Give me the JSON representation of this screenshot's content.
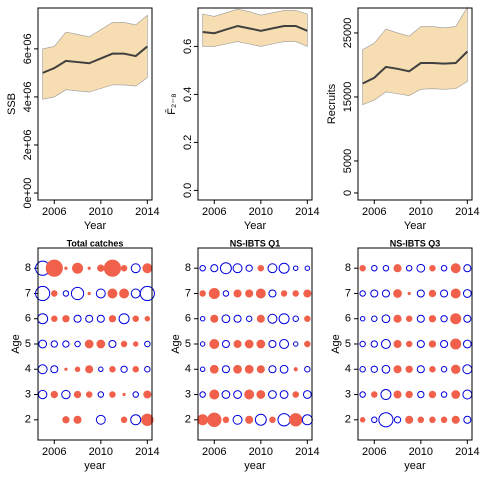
{
  "chart_data": [
    {
      "type": "band",
      "ylabel": "SSB",
      "xlabel": "Year",
      "x": [
        2005,
        2006,
        2007,
        2008,
        2009,
        2010,
        2011,
        2012,
        2013,
        2014
      ],
      "values": [
        5000000,
        5200000,
        5500000,
        5450000,
        5400000,
        5600000,
        5800000,
        5800000,
        5700000,
        6100000
      ],
      "upper": [
        6000000,
        6100000,
        6700000,
        6600000,
        6500000,
        6800000,
        7100000,
        7100000,
        7000000,
        7400000
      ],
      "lower": [
        3900000,
        4000000,
        4300000,
        4250000,
        4200000,
        4350000,
        4500000,
        4500000,
        4450000,
        4800000
      ],
      "color": "#404040",
      "band_color": "#f7ddb2",
      "xlim": [
        2004.6,
        2014.4
      ],
      "xticks": [
        2006,
        2010,
        2014
      ],
      "ylim": [
        -290000,
        7700000
      ],
      "yticks": [
        {
          "value": 0,
          "label": "0e+00"
        },
        {
          "value": 2000000,
          "label": "2e+06"
        },
        {
          "value": 4000000,
          "label": "4e+06"
        },
        {
          "value": 6000000,
          "label": "6e+06"
        }
      ]
    },
    {
      "type": "band",
      "ylabel": "F̄₂₋₈",
      "xlabel": "Year",
      "x": [
        2005,
        2006,
        2007,
        2008,
        2009,
        2010,
        2011,
        2012,
        2013,
        2014
      ],
      "values": [
        0.66,
        0.655,
        0.67,
        0.685,
        0.675,
        0.665,
        0.675,
        0.685,
        0.685,
        0.665
      ],
      "upper": [
        0.735,
        0.725,
        0.74,
        0.755,
        0.745,
        0.73,
        0.74,
        0.75,
        0.75,
        0.735
      ],
      "lower": [
        0.6,
        0.6,
        0.61,
        0.62,
        0.61,
        0.6,
        0.61,
        0.62,
        0.62,
        0.6
      ],
      "color": "#404040",
      "band_color": "#f7ddb2",
      "xlim": [
        2004.6,
        2014.4
      ],
      "xticks": [
        2006,
        2010,
        2014
      ],
      "ylim": [
        -0.04,
        0.76
      ],
      "yticks": [
        {
          "value": 0,
          "label": "0.0"
        },
        0.2,
        0.4,
        0.6
      ]
    },
    {
      "type": "band",
      "ylabel": "Recruits",
      "xlabel": "Year",
      "x": [
        2005,
        2006,
        2007,
        2008,
        2009,
        2010,
        2011,
        2012,
        2013,
        2014
      ],
      "values": [
        17100,
        18000,
        19700,
        19400,
        19000,
        20300,
        20300,
        20200,
        20300,
        22100
      ],
      "upper": [
        22400,
        23400,
        25600,
        25000,
        24500,
        26000,
        26000,
        25800,
        26000,
        29000
      ],
      "lower": [
        13800,
        14500,
        15800,
        15500,
        15200,
        16200,
        16300,
        16200,
        16300,
        17400
      ],
      "color": "#404040",
      "band_color": "#f7ddb2",
      "xlim": [
        2004.6,
        2014.4
      ],
      "xticks": [
        2006,
        2010,
        2014
      ],
      "ylim": [
        -1100,
        28900
      ],
      "yticks": [
        0,
        5000,
        15000,
        25000
      ]
    },
    {
      "type": "bubble",
      "title": "Total catches",
      "ylabel": "Age",
      "xlabel": "year",
      "x": [
        2005,
        2006,
        2007,
        2008,
        2009,
        2010,
        2011,
        2012,
        2013,
        2014
      ],
      "y": [
        2,
        3,
        4,
        5,
        6,
        7,
        8
      ],
      "values": [
        [
          0,
          0,
          0.4,
          0.5,
          0,
          -0.8,
          0,
          0.3,
          -1.0,
          1.3
        ],
        [
          -0.7,
          0.4,
          -0.7,
          0.4,
          0.3,
          -0.3,
          0.3,
          0.05,
          -0.3,
          0.5
        ],
        [
          -0.8,
          -0.5,
          0.05,
          0.2,
          0.5,
          -0.2,
          0.3,
          -0.4,
          0.3,
          -0.3
        ],
        [
          -0.6,
          -0.4,
          -0.4,
          -0.3,
          0.6,
          0.6,
          -0.5,
          0.3,
          0.2,
          -0.3
        ],
        [
          -1.0,
          0.3,
          0.4,
          -0.5,
          -0.5,
          -0.5,
          0.4,
          -1.0,
          0.3,
          0.2
        ],
        [
          -2.0,
          0.3,
          -0.3,
          -1.5,
          0.05,
          -0.8,
          0.8,
          0.8,
          -0.8,
          -2.0
        ],
        [
          -2.0,
          2.6,
          0.05,
          1.0,
          0.05,
          0.4,
          2.6,
          0.3,
          -0.8,
          0.8
        ]
      ],
      "pos_color": "#f0604a",
      "neg_color": "#0000dd",
      "xlim": [
        2004.6,
        2014.4
      ],
      "xticks": [
        2006,
        2010,
        2014
      ],
      "ylim": [
        1.2,
        8.8
      ]
    },
    {
      "type": "bubble",
      "title": "NS-IBTS Q1",
      "ylabel": "Age",
      "xlabel": "year",
      "x": [
        2005,
        2006,
        2007,
        2008,
        2009,
        2010,
        2011,
        2012,
        2013,
        2014
      ],
      "y": [
        2,
        3,
        4,
        5,
        6,
        7,
        8
      ],
      "values": [
        [
          1.0,
          1.8,
          0.3,
          -0.8,
          0.5,
          -1.2,
          0.3,
          -1.5,
          1.5,
          -1.0
        ],
        [
          -0.3,
          0.8,
          -0.6,
          -0.6,
          0.8,
          0.6,
          -0.6,
          -0.6,
          0.3,
          -0.6
        ],
        [
          -0.2,
          0.6,
          -0.5,
          0.6,
          0.6,
          0.5,
          -0.5,
          -0.6,
          0.1,
          -0.3
        ],
        [
          -0.2,
          0.8,
          -0.5,
          0.5,
          0.6,
          0.6,
          -0.5,
          -0.8,
          -0.2,
          0.3
        ],
        [
          -0.2,
          0.5,
          -0.6,
          -0.5,
          -0.3,
          0.5,
          -0.8,
          -1.0,
          -0.3,
          0.3
        ],
        [
          0.3,
          1.0,
          -0.3,
          0.5,
          0.5,
          0.8,
          -0.5,
          0.3,
          0.3,
          0.5
        ],
        [
          -0.3,
          -0.5,
          -1.2,
          -0.8,
          -0.4,
          0.3,
          -0.8,
          -1.0,
          -0.2,
          -0.2
        ]
      ],
      "pos_color": "#f0604a",
      "neg_color": "#0000dd",
      "xlim": [
        2004.6,
        2014.4
      ],
      "xticks": [
        2006,
        2010,
        2014
      ],
      "ylim": [
        1.2,
        8.8
      ]
    },
    {
      "type": "bubble",
      "title": "NS-IBTS Q3",
      "ylabel": "Age",
      "xlabel": "year",
      "x": [
        2005,
        2006,
        2007,
        2008,
        2009,
        2010,
        2011,
        2012,
        2013,
        2014
      ],
      "y": [
        2,
        3,
        4,
        5,
        6,
        7,
        8
      ],
      "values": [
        [
          0.2,
          -0.3,
          -2.0,
          -0.4,
          0.5,
          0.3,
          0.3,
          0.3,
          0.5,
          -0.5
        ],
        [
          -0.3,
          0.3,
          -1.0,
          0.5,
          0.4,
          -0.4,
          0.4,
          -0.3,
          0.6,
          -0.8
        ],
        [
          -0.3,
          -0.4,
          -0.6,
          0.5,
          0.4,
          -0.5,
          0.3,
          -0.3,
          0.7,
          -0.8
        ],
        [
          -0.3,
          -0.4,
          -0.8,
          0.5,
          0.3,
          -0.5,
          0.4,
          -0.5,
          1.0,
          -0.6
        ],
        [
          -0.2,
          -0.3,
          -0.6,
          0.5,
          0.3,
          -0.5,
          0.4,
          -0.4,
          1.0,
          -0.5
        ],
        [
          -0.3,
          -0.5,
          -0.5,
          0.6,
          0.05,
          -0.5,
          0.4,
          -0.5,
          0.8,
          -0.6
        ],
        [
          0.3,
          -0.3,
          -0.3,
          0.5,
          -0.3,
          -0.6,
          0.3,
          -0.3,
          0.8,
          -0.5
        ]
      ],
      "pos_color": "#f0604a",
      "neg_color": "#0000dd",
      "xlim": [
        2004.6,
        2014.4
      ],
      "xticks": [
        2006,
        2010,
        2014
      ],
      "ylim": [
        1.2,
        8.8
      ]
    }
  ]
}
